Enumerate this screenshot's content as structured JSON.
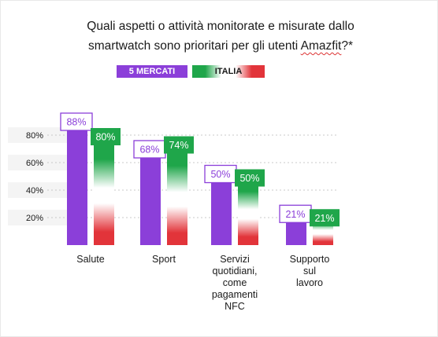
{
  "title": {
    "line1": "Quali aspetti o attività monitorate e misurate dallo",
    "line2_prefix": "smartwatch sono prioritari per gli utenti ",
    "line2_brand": "Amazfit",
    "line2_suffix": "?*"
  },
  "legend": {
    "five_markets": "5 MERCATI",
    "italia": "ITALIA"
  },
  "colors": {
    "five_markets": "#8b3fd9",
    "italia_green": "#1fa64a",
    "italia_red": "#e2343a"
  },
  "chart_data": {
    "type": "bar",
    "categories": [
      "Salute",
      "Sport",
      "Servizi quotidiani, come pagamenti NFC",
      "Supporto sul lavoro"
    ],
    "category_lines": [
      [
        "Salute"
      ],
      [
        "Sport"
      ],
      [
        "Servizi",
        "quotidiani,",
        "come",
        "pagamenti",
        "NFC"
      ],
      [
        "Supporto",
        "sul",
        "lavoro"
      ]
    ],
    "series": [
      {
        "name": "5 MERCATI",
        "values": [
          88,
          68,
          50,
          21
        ]
      },
      {
        "name": "ITALIA",
        "values": [
          80,
          74,
          50,
          21
        ]
      }
    ],
    "value_labels": [
      [
        "88%",
        "68%",
        "50%",
        "21%"
      ],
      [
        "80%",
        "74%",
        "50%",
        "21%"
      ]
    ],
    "yticks": [
      "20%",
      "40%",
      "60%",
      "80%"
    ],
    "ytick_values": [
      20,
      40,
      60,
      80
    ],
    "ylim": [
      0,
      100
    ],
    "grid": true
  }
}
